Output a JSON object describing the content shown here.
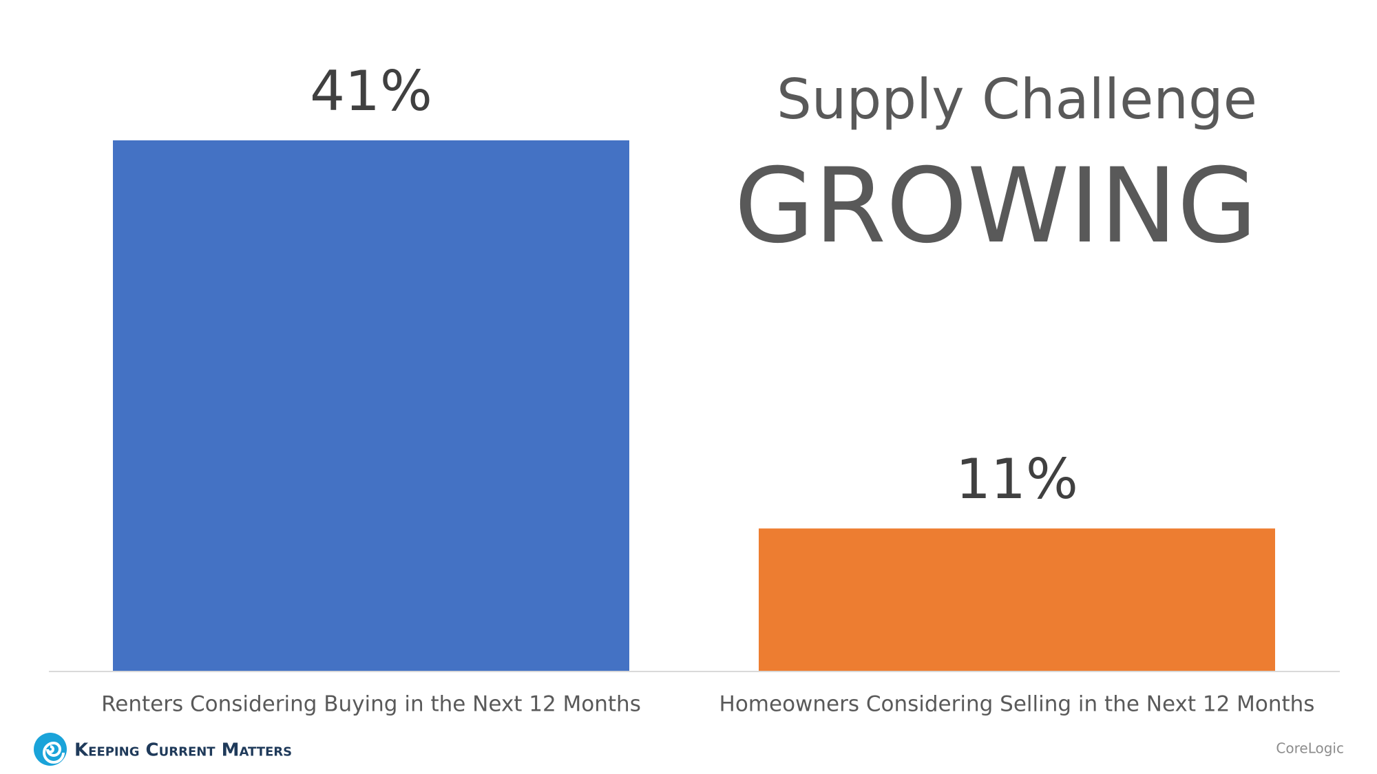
{
  "chart_data": {
    "type": "bar",
    "title": "Supply Challenge",
    "subtitle": "GROWING",
    "categories": [
      "Renters Considering Buying in the Next 12 Months",
      "Homeowners Considering Selling in the Next 12 Months"
    ],
    "values": [
      41,
      11
    ],
    "value_labels": [
      "41%",
      "11%"
    ],
    "colors": [
      "#4472c4",
      "#ed7d31"
    ],
    "source": "CoreLogic"
  },
  "branding": {
    "logo": "Keeping Current Matters"
  }
}
